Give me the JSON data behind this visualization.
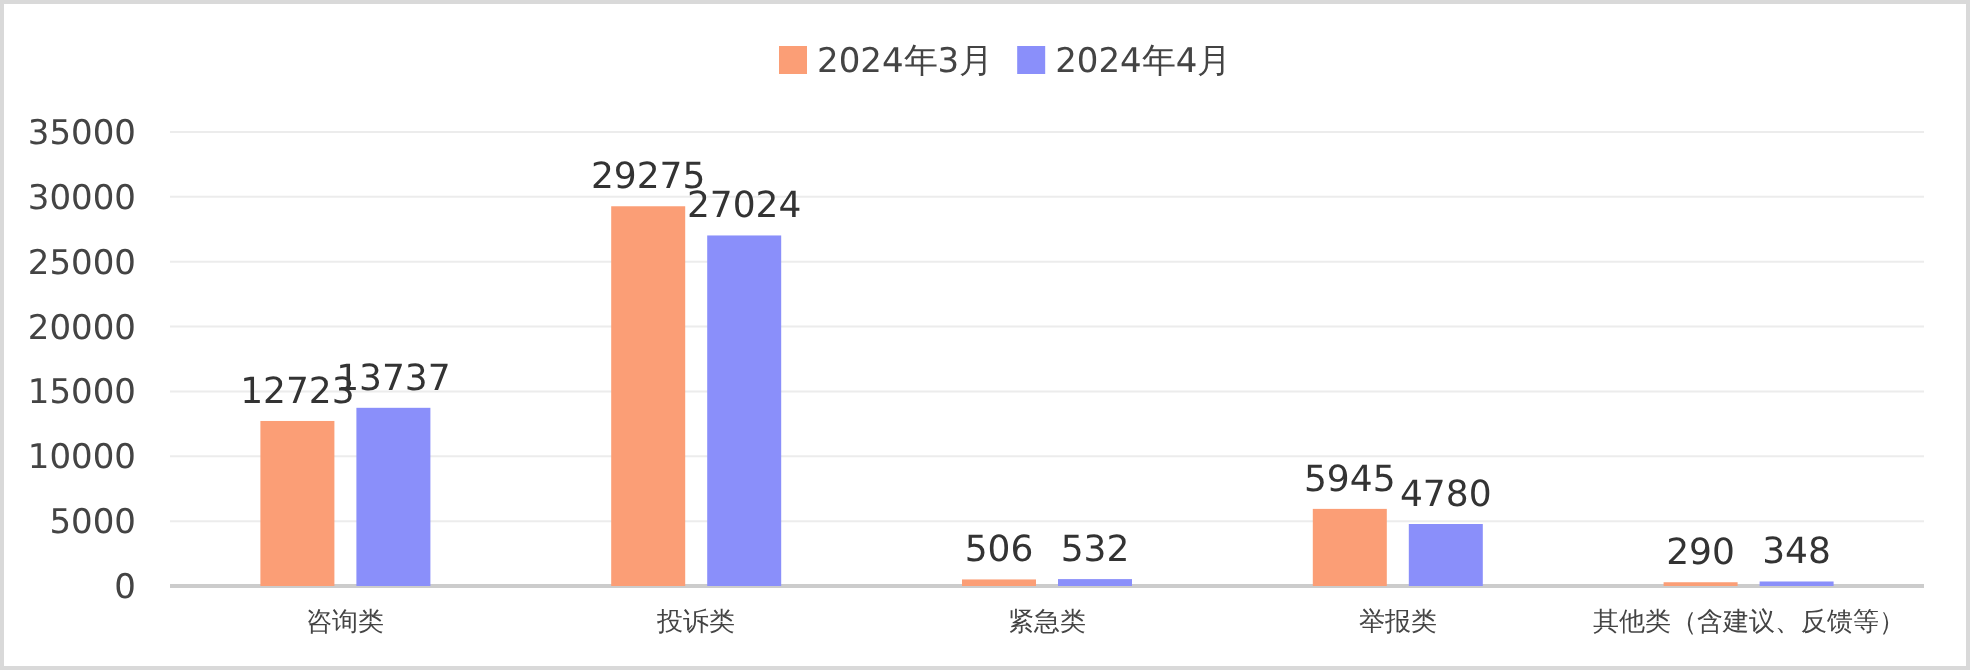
{
  "chart_data": {
    "type": "bar",
    "categories": [
      "咨询类",
      "投诉类",
      "紧急类",
      "举报类",
      "其他类（含建议、反馈等）"
    ],
    "series": [
      {
        "name": "2024年3月",
        "color": "#fb9e76",
        "values": [
          12723,
          29275,
          506,
          5945,
          290
        ]
      },
      {
        "name": "2024年4月",
        "color": "#8a8ffa",
        "values": [
          13737,
          27024,
          532,
          4780,
          348
        ]
      }
    ],
    "ylim": [
      0,
      35000
    ],
    "yticks": [
      0,
      5000,
      10000,
      15000,
      20000,
      25000,
      30000,
      35000
    ],
    "grid": "y",
    "legend": "top",
    "data_labels": true
  }
}
